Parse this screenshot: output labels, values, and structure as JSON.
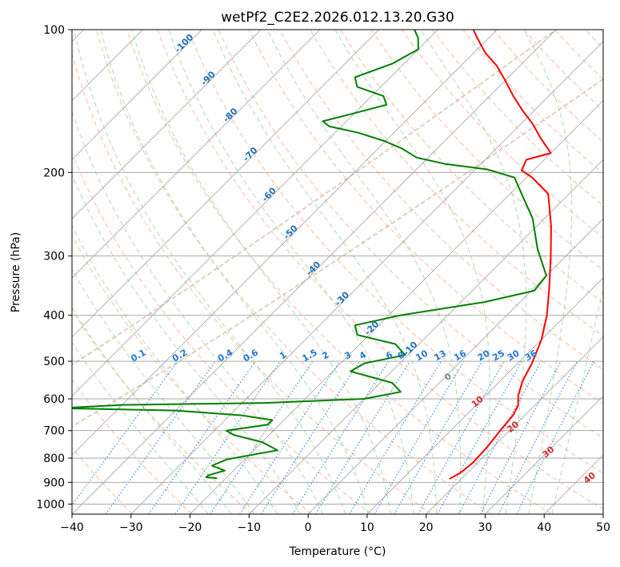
{
  "chart_data": {
    "type": "skew-t",
    "title": "wetPf2_C2E2.2026.012.13.20.G30",
    "xlabel": "Temperature (°C)",
    "ylabel": "Pressure (hPa)",
    "xlim": [
      -40,
      50
    ],
    "ylim": [
      1050,
      100
    ],
    "x_ticks": [
      -40,
      -30,
      -20,
      -10,
      0,
      10,
      20,
      30,
      40,
      50
    ],
    "y_ticks": [
      100,
      200,
      300,
      400,
      500,
      600,
      700,
      800,
      900,
      1000
    ],
    "colors": {
      "temperature": "#ff0000",
      "dewpoint": "#008000",
      "isotherm": "#999999",
      "dry_adiabat": "#f4a582",
      "moist_adiabat": "#8fc98f",
      "mixing_ratio": "#1f77d4",
      "lcl_arc": "#c8b08a",
      "isotherm_label": "#1f6fb4",
      "dry_adiabat_label": "#d62728",
      "zero_label": "#888888"
    },
    "series": [
      {
        "name": "Temperature",
        "points": [
          [
            18.0,
            885
          ],
          [
            18.8,
            860
          ],
          [
            19.2,
            820
          ],
          [
            19.0,
            760
          ],
          [
            18.4,
            700
          ],
          [
            18.0,
            650
          ],
          [
            17.2,
            620
          ],
          [
            15.5,
            590
          ],
          [
            13.8,
            550
          ],
          [
            12.4,
            505
          ],
          [
            10.0,
            450
          ],
          [
            6.8,
            400
          ],
          [
            3.0,
            355
          ],
          [
            -2.0,
            305
          ],
          [
            -7.5,
            260
          ],
          [
            -13.5,
            222
          ],
          [
            -19.0,
            205
          ],
          [
            -22.0,
            198
          ],
          [
            -23.0,
            188
          ],
          [
            -20.0,
            182
          ],
          [
            -24.0,
            170
          ],
          [
            -28.0,
            158
          ],
          [
            -32.0,
            148
          ],
          [
            -36.0,
            138
          ],
          [
            -40.0,
            128
          ],
          [
            -44.0,
            119
          ],
          [
            -48.0,
            112
          ],
          [
            -52.0,
            104
          ],
          [
            -54.0,
            100
          ]
        ]
      },
      {
        "name": "Dewpoint",
        "points": [
          [
            -21.5,
            882
          ],
          [
            -23.5,
            878
          ],
          [
            -23.5,
            870
          ],
          [
            -21.5,
            850
          ],
          [
            -24.5,
            830
          ],
          [
            -23.0,
            805
          ],
          [
            -16.0,
            770
          ],
          [
            -20.0,
            740
          ],
          [
            -26.0,
            715
          ],
          [
            -28.0,
            700
          ],
          [
            -22.0,
            680
          ],
          [
            -22.0,
            665
          ],
          [
            -28.0,
            650
          ],
          [
            -40.0,
            635
          ],
          [
            -60.0,
            628
          ],
          [
            -50.0,
            618
          ],
          [
            -26.0,
            612
          ],
          [
            -10.0,
            600
          ],
          [
            -5.0,
            580
          ],
          [
            -8.0,
            555
          ],
          [
            -17.0,
            525
          ],
          [
            -16.0,
            505
          ],
          [
            -10.5,
            485
          ],
          [
            -14.0,
            460
          ],
          [
            -22.0,
            440
          ],
          [
            -24.0,
            420
          ],
          [
            -18.0,
            400
          ],
          [
            -6.0,
            375
          ],
          [
            0.5,
            355
          ],
          [
            0.0,
            330
          ],
          [
            -6.0,
            290
          ],
          [
            -12.0,
            250
          ],
          [
            -18.0,
            222
          ],
          [
            -22.0,
            205
          ],
          [
            -28.0,
            197
          ],
          [
            -36.0,
            192
          ],
          [
            -42.0,
            186
          ],
          [
            -46.0,
            178
          ],
          [
            -50.0,
            172
          ],
          [
            -56.0,
            165
          ],
          [
            -62.0,
            160
          ],
          [
            -64.0,
            156
          ],
          [
            -60.0,
            150
          ],
          [
            -56.0,
            144
          ],
          [
            -58.0,
            138
          ],
          [
            -64.0,
            132
          ],
          [
            -66.0,
            126
          ],
          [
            -62.0,
            118
          ],
          [
            -60.0,
            110
          ],
          [
            -62.0,
            104
          ],
          [
            -64.0,
            100
          ]
        ]
      }
    ],
    "isotherm_labels": [
      {
        "text": "-100",
        "t": -100,
        "p": 108
      },
      {
        "text": "-90",
        "t": -90,
        "p": 128
      },
      {
        "text": "-80",
        "t": -80,
        "p": 153
      },
      {
        "text": "-70",
        "t": -70,
        "p": 185
      },
      {
        "text": "-60",
        "t": -60,
        "p": 225
      },
      {
        "text": "-50",
        "t": -50,
        "p": 270
      },
      {
        "text": "-40",
        "t": -40,
        "p": 322
      },
      {
        "text": "-30",
        "t": -30,
        "p": 373
      },
      {
        "text": "-20",
        "t": -20,
        "p": 430
      },
      {
        "text": "-10",
        "t": -10,
        "p": 475
      }
    ],
    "mixing_ratio_labels": [
      "0.1",
      "0.2",
      "0.4",
      "0.6",
      "1",
      "1.5",
      "2",
      "3",
      "4",
      "6",
      "8",
      "10",
      "13",
      "16",
      "20",
      "25",
      "30",
      "36"
    ],
    "mixing_ratio_label_temps": [
      -28.5,
      -21.5,
      -13.8,
      -9.5,
      -4.0,
      0.5,
      3.2,
      7.0,
      9.5,
      14.0,
      16.0,
      19.5,
      22.6,
      26.0,
      30.0,
      32.5,
      35.0,
      38.0
    ],
    "dry_adiabat_labels": [
      {
        "text": "0",
        "t": 24,
        "p": 545,
        "kind": "zero"
      },
      {
        "text": "10",
        "t": 29,
        "p": 615,
        "kind": "dry"
      },
      {
        "text": "20",
        "t": 35,
        "p": 695,
        "kind": "dry"
      },
      {
        "text": "30",
        "t": 41,
        "p": 785,
        "kind": "dry"
      },
      {
        "text": "40",
        "t": 48,
        "p": 890,
        "kind": "dry"
      }
    ]
  }
}
